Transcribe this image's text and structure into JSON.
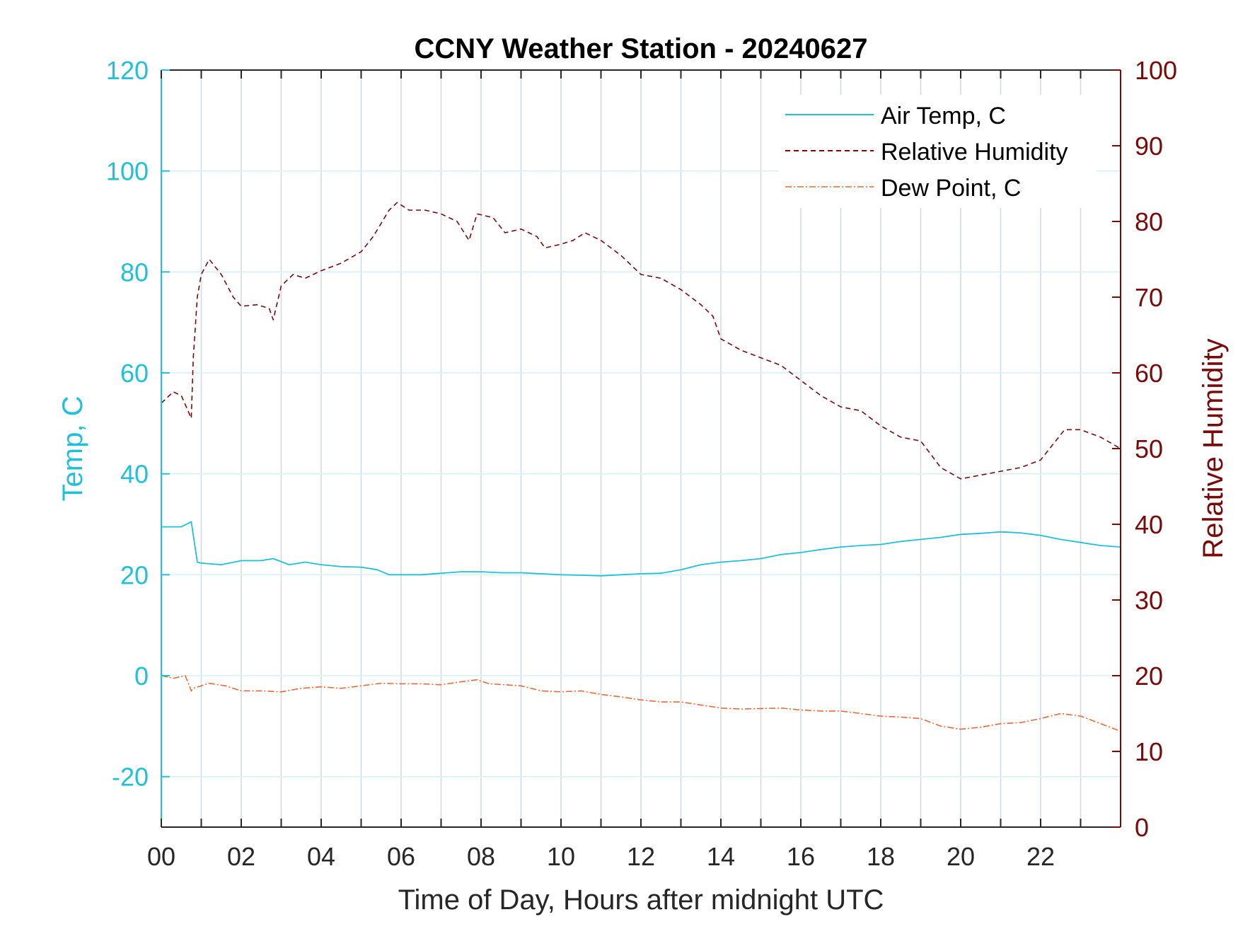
{
  "chart_data": {
    "type": "line",
    "title": "CCNY Weather Station - 20240627",
    "xlabel": "Time of Day, Hours after midnight UTC",
    "ylabel_left": "Temp, C",
    "ylabel_right": "Relative Humidity",
    "xlim": [
      0,
      24
    ],
    "ylim_left": [
      -30,
      120
    ],
    "ylim_right": [
      0,
      100
    ],
    "x_ticks": [
      "00",
      "02",
      "04",
      "06",
      "08",
      "10",
      "12",
      "14",
      "16",
      "18",
      "20",
      "22"
    ],
    "y_left_ticks": [
      "-20",
      "0",
      "20",
      "40",
      "60",
      "80",
      "100",
      "120"
    ],
    "y_right_ticks": [
      "0",
      "10",
      "20",
      "30",
      "40",
      "50",
      "60",
      "70",
      "80",
      "90",
      "100"
    ],
    "grid": "vertical lines every hour, horizontal lines at left ticks",
    "legend_position": "top-right",
    "series": [
      {
        "name": "Air Temp, C",
        "axis": "left",
        "color": "#1fc0d8",
        "style": "solid",
        "x": [
          0,
          0.5,
          0.75,
          0.9,
          1.0,
          1.5,
          2.0,
          2.5,
          2.8,
          3.2,
          3.6,
          4.0,
          4.5,
          5.0,
          5.4,
          5.7,
          6.0,
          6.5,
          7.0,
          7.5,
          8.0,
          8.5,
          9.0,
          9.5,
          10.0,
          10.5,
          11.0,
          11.5,
          12.0,
          12.5,
          13.0,
          13.5,
          14.0,
          14.5,
          15.0,
          15.5,
          16.0,
          16.5,
          17.0,
          17.5,
          18.0,
          18.5,
          19.0,
          19.5,
          20.0,
          20.5,
          21.0,
          21.5,
          22.0,
          22.5,
          23.0,
          23.5,
          24.0
        ],
        "y": [
          29.5,
          29.5,
          30.5,
          22.5,
          22.3,
          22.0,
          22.8,
          22.8,
          23.2,
          22.0,
          22.5,
          22.0,
          21.6,
          21.5,
          21.0,
          20.0,
          20.0,
          20.0,
          20.3,
          20.6,
          20.6,
          20.4,
          20.4,
          20.2,
          20.0,
          19.9,
          19.8,
          20.0,
          20.2,
          20.3,
          21.0,
          22.0,
          22.5,
          22.8,
          23.2,
          24.0,
          24.4,
          25.0,
          25.5,
          25.8,
          26.0,
          26.6,
          27.0,
          27.4,
          28.0,
          28.2,
          28.5,
          28.3,
          27.8,
          27.0,
          26.4,
          25.8,
          25.5
        ]
      },
      {
        "name": "Relative Humidity",
        "axis": "right",
        "color": "#7a0a0a",
        "style": "dashed",
        "x": [
          0,
          0.3,
          0.5,
          0.75,
          0.8,
          0.9,
          1.0,
          1.2,
          1.5,
          1.8,
          2.0,
          2.4,
          2.7,
          2.8,
          3.0,
          3.3,
          3.6,
          4.0,
          4.5,
          5.0,
          5.3,
          5.7,
          5.9,
          6.2,
          6.6,
          7.0,
          7.4,
          7.7,
          7.9,
          8.3,
          8.6,
          9.0,
          9.4,
          9.6,
          10.0,
          10.3,
          10.6,
          11.0,
          11.5,
          12.0,
          12.5,
          13.0,
          13.5,
          13.8,
          14.0,
          14.5,
          15.0,
          15.5,
          16.0,
          16.5,
          17.0,
          17.5,
          18.0,
          18.5,
          19.0,
          19.5,
          20.0,
          20.5,
          21.0,
          21.5,
          22.0,
          22.3,
          22.6,
          23.0,
          23.5,
          24.0
        ],
        "y": [
          56,
          57.5,
          57,
          54,
          62,
          70,
          73,
          75,
          73,
          70,
          68.8,
          69,
          68.5,
          67,
          71.5,
          73,
          72.5,
          73.5,
          74.5,
          76,
          78,
          81.5,
          82.5,
          81.5,
          81.5,
          81,
          80,
          77.5,
          81,
          80.5,
          78.5,
          79,
          78,
          76.5,
          77,
          77.5,
          78.5,
          77.5,
          75.5,
          73,
          72.5,
          71,
          69,
          67.5,
          64.5,
          63,
          62,
          61,
          59,
          57,
          55.5,
          55,
          53,
          51.5,
          51,
          47.5,
          46,
          46.5,
          47,
          47.5,
          48.5,
          50.5,
          52.5,
          52.5,
          51.5,
          50
        ]
      },
      {
        "name": "Dew Point, C",
        "axis": "left",
        "color": "#ea6a35",
        "style": "dash-dot",
        "x": [
          0,
          0.3,
          0.6,
          0.75,
          0.8,
          1.0,
          1.2,
          1.6,
          2.0,
          2.5,
          3.0,
          3.5,
          4.0,
          4.5,
          5.0,
          5.5,
          6.0,
          6.5,
          7.0,
          7.5,
          7.9,
          8.2,
          8.6,
          9.0,
          9.5,
          10.0,
          10.5,
          11.0,
          11.5,
          12.0,
          12.5,
          13.0,
          13.5,
          14.0,
          14.5,
          15.0,
          15.5,
          16.0,
          16.5,
          17.0,
          17.5,
          18.0,
          18.5,
          19.0,
          19.5,
          20.0,
          20.5,
          21.0,
          21.5,
          22.0,
          22.5,
          23.0,
          23.5,
          24.0
        ],
        "y": [
          0,
          -0.5,
          0,
          -3.0,
          -2.5,
          -2.0,
          -1.5,
          -2.0,
          -3.0,
          -3.0,
          -3.2,
          -2.5,
          -2.2,
          -2.5,
          -2.0,
          -1.5,
          -1.6,
          -1.6,
          -1.8,
          -1.2,
          -0.8,
          -1.6,
          -1.8,
          -2.0,
          -3.0,
          -3.2,
          -3.0,
          -3.7,
          -4.2,
          -4.8,
          -5.2,
          -5.2,
          -5.8,
          -6.4,
          -6.6,
          -6.5,
          -6.4,
          -6.8,
          -7.0,
          -7.0,
          -7.5,
          -8.0,
          -8.2,
          -8.5,
          -10.0,
          -10.6,
          -10.2,
          -9.5,
          -9.3,
          -8.5,
          -7.5,
          -8.0,
          -9.5,
          -11.0
        ]
      }
    ]
  }
}
